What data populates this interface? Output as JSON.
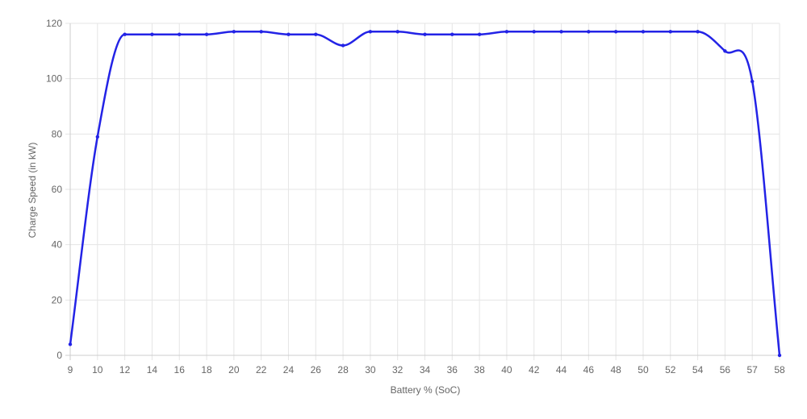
{
  "chart_data": {
    "type": "line",
    "xlabel": "Battery % (SoC)",
    "ylabel": "Charge Speed (in kW)",
    "x": [
      "9",
      "10",
      "12",
      "14",
      "16",
      "18",
      "20",
      "22",
      "24",
      "26",
      "28",
      "30",
      "32",
      "34",
      "36",
      "38",
      "40",
      "42",
      "44",
      "46",
      "48",
      "50",
      "52",
      "54",
      "56",
      "57",
      "58"
    ],
    "series": [
      {
        "values": [
          4,
          79,
          116,
          116,
          116,
          116,
          117,
          117,
          116,
          116,
          112,
          117,
          117,
          116,
          116,
          116,
          117,
          117,
          117,
          117,
          117,
          117,
          117,
          117,
          110,
          99,
          0
        ],
        "color": "#2323e6"
      }
    ],
    "ylim": [
      0,
      120
    ],
    "yticks": [
      0,
      20,
      40,
      60,
      80,
      100,
      120
    ],
    "grid": true,
    "legend": "none"
  }
}
